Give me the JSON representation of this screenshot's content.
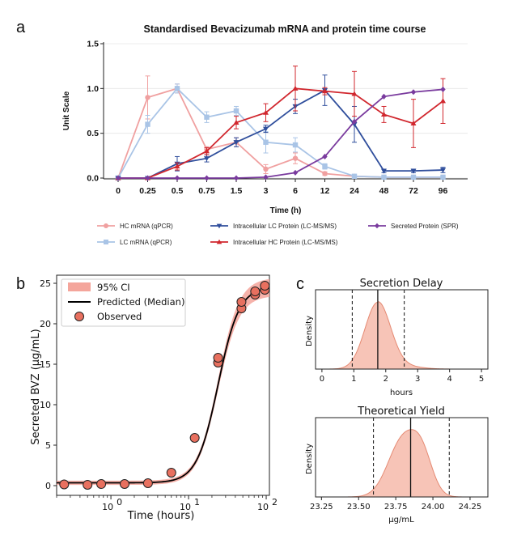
{
  "chart_data": [
    {
      "panel": "a",
      "type": "line",
      "title": "Standardised Bevacizumab mRNA and protein time course",
      "xlabel": "Time (h)",
      "ylabel": "Unit Scale",
      "categories": [
        "0",
        "0.25",
        "0.5",
        "0.75",
        "1.5",
        "3",
        "6",
        "12",
        "24",
        "48",
        "72",
        "96"
      ],
      "ylim": [
        0,
        1.5
      ],
      "yticks": [
        "0.0",
        "0.5",
        "1.0",
        "1.5"
      ],
      "series": [
        {
          "name": "HC mRNA (qPCR)",
          "color": "#f0a0a0",
          "marker": "circle",
          "values": [
            0,
            0.9,
            1.0,
            0.32,
            0.4,
            0.1,
            0.22,
            0.05,
            0.02,
            0.01,
            0.01,
            0.01
          ],
          "errors": [
            0,
            0.24,
            0.05,
            0.03,
            0.05,
            0.05,
            0.06,
            0.02,
            0.01,
            0,
            0,
            0
          ]
        },
        {
          "name": "LC mRNA (qPCR)",
          "color": "#a9c4e6",
          "marker": "square",
          "values": [
            0,
            0.6,
            1.0,
            0.68,
            0.75,
            0.4,
            0.37,
            0.13,
            0.02,
            0.01,
            0.01,
            0.01
          ],
          "errors": [
            0,
            0.1,
            0.05,
            0.06,
            0.05,
            0.12,
            0.08,
            0.03,
            0.01,
            0,
            0,
            0
          ]
        },
        {
          "name": "Intracellular LC Protein (LC-MS/MS)",
          "color": "#2f4e9c",
          "marker": "triangle-down",
          "values": [
            0,
            0,
            0.16,
            0.22,
            0.4,
            0.55,
            0.8,
            0.98,
            0.6,
            0.08,
            0.08,
            0.09
          ],
          "errors": [
            0,
            0,
            0.08,
            0.04,
            0.05,
            0.04,
            0.08,
            0.17,
            0.2,
            0.02,
            0.02,
            0.03
          ]
        },
        {
          "name": "Intracellular HC Protein (LC-MS/MS)",
          "color": "#d1272e",
          "marker": "triangle-up",
          "values": [
            0,
            0,
            0.13,
            0.3,
            0.62,
            0.73,
            1.0,
            0.97,
            0.94,
            0.71,
            0.61,
            0.86
          ],
          "errors": [
            0,
            0,
            0.04,
            0.04,
            0.07,
            0.1,
            0.25,
            0.04,
            0.25,
            0.09,
            0.27,
            0.25
          ]
        },
        {
          "name": "Secreted Protein (SPR)",
          "color": "#7a3b9e",
          "marker": "diamond",
          "values": [
            0,
            0,
            0,
            0,
            0,
            0.01,
            0.06,
            0.24,
            0.63,
            0.91,
            0.96,
            0.99
          ],
          "errors": [
            0,
            0,
            0,
            0,
            0,
            0,
            0,
            0,
            0,
            0,
            0,
            0
          ]
        }
      ]
    },
    {
      "panel": "b",
      "type": "scatter",
      "xlabel": "Time (hours)",
      "ylabel": "Secreted BVZ (μg/mL)",
      "xscale": "log",
      "xlim": [
        0.2,
        110
      ],
      "ylim": [
        -1.2,
        26
      ],
      "xticks": [
        {
          "value": 1,
          "base": "10",
          "exp": "0"
        },
        {
          "value": 10,
          "base": "10",
          "exp": "1"
        },
        {
          "value": 100,
          "base": "10",
          "exp": "2"
        }
      ],
      "yticks": [
        0,
        5,
        10,
        15,
        20,
        25
      ],
      "legend": [
        "95% CI",
        "Predicted (Median)",
        "Observed"
      ],
      "legend_position": "top-left",
      "colors": {
        "ci": "#f4a59b",
        "median": "#000000",
        "observed": "#e8705f"
      },
      "model": {
        "Ymax": 24.6,
        "baseline": 0.35,
        "t50": 24,
        "hill": 3.2
      },
      "observed": [
        {
          "x": 0.25,
          "y": 0.15
        },
        {
          "x": 0.5,
          "y": 0.1
        },
        {
          "x": 0.75,
          "y": 0.2
        },
        {
          "x": 1.5,
          "y": 0.2
        },
        {
          "x": 3,
          "y": 0.3
        },
        {
          "x": 6,
          "y": 1.6
        },
        {
          "x": 12,
          "y": 5.9
        },
        {
          "x": 24,
          "y": 15.2
        },
        {
          "x": 24,
          "y": 15.8
        },
        {
          "x": 48,
          "y": 21.9
        },
        {
          "x": 48,
          "y": 22.7
        },
        {
          "x": 72,
          "y": 23.6
        },
        {
          "x": 72,
          "y": 24.0
        },
        {
          "x": 96,
          "y": 24.2
        },
        {
          "x": 96,
          "y": 24.7
        }
      ]
    },
    {
      "panel": "c1",
      "type": "area",
      "title": "Secretion Delay",
      "xlabel": "hours",
      "ylabel": "Density",
      "xlim": [
        -0.2,
        5.2
      ],
      "xticks": [
        0,
        1,
        2,
        3,
        4,
        5
      ],
      "mean": 1.75,
      "sd": 0.4,
      "median_line": 1.75,
      "ci_lines": [
        0.95,
        2.58
      ],
      "color": "#f4b09f"
    },
    {
      "panel": "c2",
      "type": "area",
      "title": "Theoretical Yield",
      "xlabel": "μg/mL",
      "ylabel": "Density",
      "xlim": [
        23.21,
        24.37
      ],
      "xticks": [
        "23.25",
        "23.50",
        "23.75",
        "24.00",
        "24.25"
      ],
      "peaks": [
        {
          "mu": 23.8,
          "sigma": 0.1,
          "w": 1.0
        },
        {
          "mu": 23.93,
          "sigma": 0.07,
          "w": 0.55
        }
      ],
      "median_line": 23.85,
      "ci_lines": [
        23.6,
        24.11
      ],
      "color": "#f4b09f"
    }
  ]
}
